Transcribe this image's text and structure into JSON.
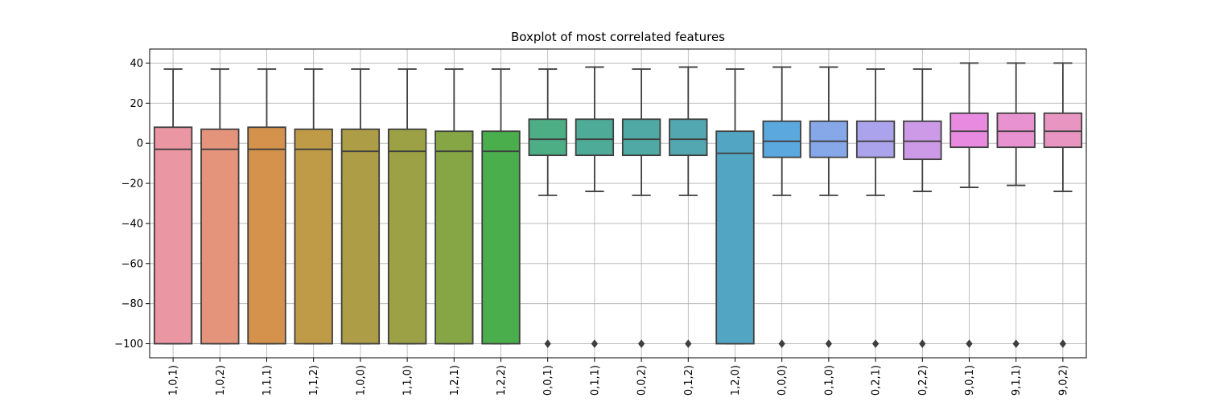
{
  "chart_data": {
    "type": "boxplot",
    "title": "Boxplot of most correlated features",
    "xlabel": "",
    "ylabel": "",
    "ylim": [
      -107,
      47
    ],
    "yticks": [
      40,
      20,
      0,
      -20,
      -40,
      -60,
      -80,
      -100
    ],
    "ytick_labels": [
      "40",
      "20",
      "0",
      "−20",
      "−40",
      "−60",
      "−80",
      "−100"
    ],
    "grid": true,
    "legend": "none",
    "categories": [
      "1,0,1)",
      "1,0,2)",
      "1,1,1)",
      "1,1,2)",
      "1,0,0)",
      "1,1,0)",
      "1,2,1)",
      "1,2,2)",
      "0,0,1)",
      "0,1,1)",
      "0,0,2)",
      "0,1,2)",
      "1,2,0)",
      "0,0,0)",
      "0,1,0)",
      "0,2,1)",
      "0,2,2)",
      "9,0,1)",
      "9,1,1)",
      "9,0,2)"
    ],
    "boxes": [
      {
        "min": -100,
        "q1": -100,
        "median": -3,
        "q3": 8,
        "max": 37,
        "outliers": []
      },
      {
        "min": -100,
        "q1": -100,
        "median": -3,
        "q3": 7,
        "max": 37,
        "outliers": []
      },
      {
        "min": -100,
        "q1": -100,
        "median": -3,
        "q3": 8,
        "max": 37,
        "outliers": []
      },
      {
        "min": -100,
        "q1": -100,
        "median": -3,
        "q3": 7,
        "max": 37,
        "outliers": []
      },
      {
        "min": -100,
        "q1": -100,
        "median": -4,
        "q3": 7,
        "max": 37,
        "outliers": []
      },
      {
        "min": -100,
        "q1": -100,
        "median": -4,
        "q3": 7,
        "max": 37,
        "outliers": []
      },
      {
        "min": -100,
        "q1": -100,
        "median": -4,
        "q3": 6,
        "max": 37,
        "outliers": []
      },
      {
        "min": -100,
        "q1": -100,
        "median": -4,
        "q3": 6,
        "max": 37,
        "outliers": []
      },
      {
        "min": -26,
        "q1": -6,
        "median": 2,
        "q3": 12,
        "max": 37,
        "outliers": [
          -100
        ]
      },
      {
        "min": -24,
        "q1": -6,
        "median": 2,
        "q3": 12,
        "max": 38,
        "outliers": [
          -100
        ]
      },
      {
        "min": -26,
        "q1": -6,
        "median": 2,
        "q3": 12,
        "max": 37,
        "outliers": [
          -100
        ]
      },
      {
        "min": -26,
        "q1": -6,
        "median": 2,
        "q3": 12,
        "max": 38,
        "outliers": [
          -100
        ]
      },
      {
        "min": -100,
        "q1": -100,
        "median": -5,
        "q3": 6,
        "max": 37,
        "outliers": []
      },
      {
        "min": -26,
        "q1": -7,
        "median": 1,
        "q3": 11,
        "max": 38,
        "outliers": [
          -100
        ]
      },
      {
        "min": -26,
        "q1": -7,
        "median": 1,
        "q3": 11,
        "max": 38,
        "outliers": [
          -100
        ]
      },
      {
        "min": -26,
        "q1": -7,
        "median": 1,
        "q3": 11,
        "max": 37,
        "outliers": [
          -100
        ]
      },
      {
        "min": -24,
        "q1": -8,
        "median": 1,
        "q3": 11,
        "max": 37,
        "outliers": [
          -100
        ]
      },
      {
        "min": -22,
        "q1": -2,
        "median": 6,
        "q3": 15,
        "max": 40,
        "outliers": [
          -100
        ]
      },
      {
        "min": -21,
        "q1": -2,
        "median": 6,
        "q3": 15,
        "max": 40,
        "outliers": [
          -100
        ]
      },
      {
        "min": -24,
        "q1": -2,
        "median": 6,
        "q3": 15,
        "max": 40,
        "outliers": [
          -100
        ]
      }
    ],
    "colors": [
      "#ea96a3",
      "#e5947c",
      "#d4924c",
      "#bf9b48",
      "#ae9d47",
      "#9da145",
      "#86a645",
      "#4aae4d",
      "#4dae85",
      "#4eab98",
      "#50a9a4",
      "#52a7b0",
      "#53a6c3",
      "#5aa8dd",
      "#86a7e8",
      "#aba4ec",
      "#cc9ae6",
      "#e88ae0",
      "#e992d1",
      "#e896c1"
    ]
  }
}
